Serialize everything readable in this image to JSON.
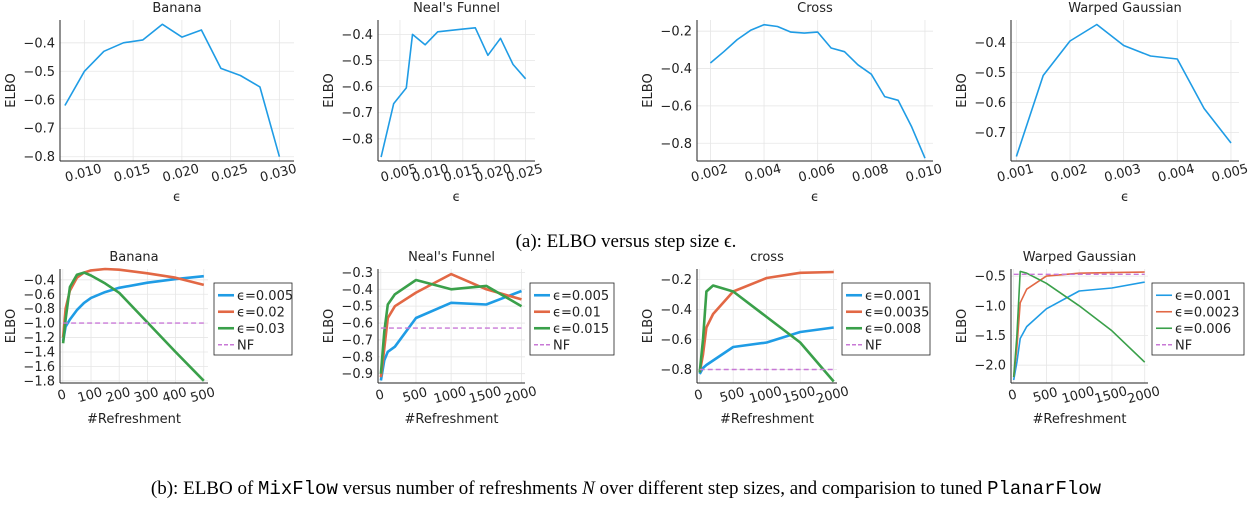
{
  "captions": {
    "a": "(a): ELBO versus step size ϵ.",
    "b_prefix": "(b): ELBO of ",
    "b_code1": "MixFlow",
    "b_mid1": " versus number of refreshments ",
    "b_var": "N",
    "b_mid2": " over different step sizes, and comparision to tuned ",
    "b_code2": "PlanarFlow"
  },
  "chart_data": [
    {
      "type": "line",
      "title": "Banana",
      "xlabel": "ϵ",
      "ylabel": "ELBO",
      "xlim": [
        0.0075,
        0.0315
      ],
      "ylim": [
        -0.815,
        -0.32
      ],
      "xticks": [
        0.01,
        0.015,
        0.02,
        0.025,
        0.03
      ],
      "xticklabels": [
        "0.010",
        "0.015",
        "0.020",
        "0.025",
        "0.030"
      ],
      "yticks": [
        -0.8,
        -0.7,
        -0.6,
        -0.5,
        -0.4
      ],
      "yticklabels": [
        "−0.8",
        "−0.7",
        "−0.6",
        "−0.5",
        "−0.4"
      ],
      "series": [
        {
          "color": "#1f9ce5",
          "x": [
            0.008,
            0.01,
            0.012,
            0.014,
            0.016,
            0.018,
            0.02,
            0.022,
            0.024,
            0.026,
            0.028,
            0.03
          ],
          "y": [
            -0.62,
            -0.5,
            -0.43,
            -0.4,
            -0.39,
            -0.335,
            -0.38,
            -0.355,
            -0.49,
            -0.515,
            -0.555,
            -0.8
          ]
        }
      ]
    },
    {
      "type": "line",
      "title": "Neal's Funnel",
      "xlabel": "ϵ",
      "ylabel": "ELBO",
      "xlim": [
        0.0015,
        0.0265
      ],
      "ylim": [
        -0.885,
        -0.345
      ],
      "xticks": [
        0.005,
        0.01,
        0.015,
        0.02,
        0.025
      ],
      "xticklabels": [
        "0.005",
        "0.010",
        "0.015",
        "0.020",
        "0.025"
      ],
      "yticks": [
        -0.8,
        -0.7,
        -0.6,
        -0.5,
        -0.4
      ],
      "yticklabels": [
        "−0.8",
        "−0.7",
        "−0.6",
        "−0.5",
        "−0.4"
      ],
      "series": [
        {
          "color": "#1f9ce5",
          "x": [
            0.002,
            0.004,
            0.006,
            0.007,
            0.009,
            0.011,
            0.013,
            0.015,
            0.017,
            0.019,
            0.021,
            0.023,
            0.025
          ],
          "y": [
            -0.87,
            -0.665,
            -0.605,
            -0.4,
            -0.44,
            -0.39,
            -0.385,
            -0.38,
            -0.375,
            -0.48,
            -0.415,
            -0.515,
            -0.57
          ]
        }
      ]
    },
    {
      "type": "line",
      "title": "Cross",
      "xlabel": "ϵ",
      "ylabel": "ELBO",
      "xlim": [
        0.0015,
        0.0103
      ],
      "ylim": [
        -0.895,
        -0.14
      ],
      "xticks": [
        0.002,
        0.004,
        0.006,
        0.008,
        0.01
      ],
      "xticklabels": [
        "0.002",
        "0.004",
        "0.006",
        "0.008",
        "0.010"
      ],
      "yticks": [
        -0.8,
        -0.6,
        -0.4,
        -0.2
      ],
      "yticklabels": [
        "−0.8",
        "−0.6",
        "−0.4",
        "−0.2"
      ],
      "series": [
        {
          "color": "#1f9ce5",
          "x": [
            0.002,
            0.0025,
            0.003,
            0.0035,
            0.004,
            0.0045,
            0.005,
            0.0055,
            0.006,
            0.0065,
            0.007,
            0.0075,
            0.008,
            0.0085,
            0.009,
            0.0095,
            0.01
          ],
          "y": [
            -0.37,
            -0.31,
            -0.245,
            -0.195,
            -0.165,
            -0.175,
            -0.205,
            -0.21,
            -0.205,
            -0.29,
            -0.31,
            -0.38,
            -0.43,
            -0.55,
            -0.57,
            -0.71,
            -0.88
          ]
        }
      ]
    },
    {
      "type": "line",
      "title": "Warped Gaussian",
      "xlabel": "ϵ",
      "ylabel": "ELBO",
      "xlim": [
        0.0009,
        0.00515
      ],
      "ylim": [
        -0.795,
        -0.325
      ],
      "xticks": [
        0.001,
        0.002,
        0.003,
        0.004,
        0.005
      ],
      "xticklabels": [
        "0.001",
        "0.002",
        "0.003",
        "0.004",
        "0.005"
      ],
      "yticks": [
        -0.7,
        -0.6,
        -0.5,
        -0.4
      ],
      "yticklabels": [
        "−0.7",
        "−0.6",
        "−0.5",
        "−0.4"
      ],
      "series": [
        {
          "color": "#1f9ce5",
          "x": [
            0.001,
            0.0015,
            0.002,
            0.0025,
            0.003,
            0.0035,
            0.004,
            0.0045,
            0.005
          ],
          "y": [
            -0.78,
            -0.51,
            -0.395,
            -0.34,
            -0.41,
            -0.445,
            -0.455,
            -0.62,
            -0.735
          ]
        }
      ]
    },
    {
      "type": "line",
      "title": "Banana",
      "xlabel": "#Refreshment",
      "ylabel": "ELBO",
      "xlim": [
        -10,
        515
      ],
      "ylim": [
        -1.83,
        -0.25
      ],
      "xticks": [
        0,
        100,
        200,
        300,
        400,
        500
      ],
      "xticklabels": [
        "0",
        "100",
        "200",
        "300",
        "400",
        "500"
      ],
      "yticks": [
        -1.8,
        -1.6,
        -1.4,
        -1.2,
        -1.0,
        -0.8,
        -0.6,
        -0.4
      ],
      "yticklabels": [
        "−1.8",
        "−1.6",
        "−1.4",
        "−1.2",
        "−1.0",
        "−0.8",
        "−0.6",
        "−0.4"
      ],
      "legend": "right",
      "series": [
        {
          "name": "ϵ=0.005",
          "color": "#1f9ce5",
          "width": 2.6,
          "x": [
            1,
            10,
            25,
            50,
            75,
            100,
            150,
            200,
            300,
            400,
            500
          ],
          "y": [
            -1.25,
            -1.05,
            -0.95,
            -0.82,
            -0.72,
            -0.65,
            -0.57,
            -0.51,
            -0.44,
            -0.39,
            -0.35
          ]
        },
        {
          "name": "ϵ=0.02",
          "color": "#e26845",
          "width": 2.6,
          "x": [
            1,
            10,
            25,
            50,
            75,
            100,
            150,
            200,
            300,
            400,
            500
          ],
          "y": [
            -1.2,
            -0.8,
            -0.55,
            -0.37,
            -0.3,
            -0.27,
            -0.25,
            -0.26,
            -0.31,
            -0.37,
            -0.47
          ]
        },
        {
          "name": "ϵ=0.03",
          "color": "#3aa04a",
          "width": 2.6,
          "x": [
            1,
            10,
            25,
            50,
            75,
            100,
            150,
            200,
            300,
            400,
            500
          ],
          "y": [
            -1.28,
            -0.95,
            -0.5,
            -0.33,
            -0.3,
            -0.34,
            -0.45,
            -0.58,
            -0.99,
            -1.4,
            -1.8
          ]
        },
        {
          "name": "NF",
          "color": "#c878d6",
          "width": 1.4,
          "dash": true,
          "x": [
            1,
            500
          ],
          "y": [
            -1.0,
            -1.0
          ]
        }
      ]
    },
    {
      "type": "line",
      "title": "Neal's Funnel",
      "xlabel": "#Refreshment",
      "ylabel": "ELBO",
      "xlim": [
        -40,
        2050
      ],
      "ylim": [
        -0.955,
        -0.28
      ],
      "xticks": [
        0,
        500,
        1000,
        1500,
        2000
      ],
      "xticklabels": [
        "0",
        "500",
        "1000",
        "1500",
        "2000"
      ],
      "yticks": [
        -0.9,
        -0.8,
        -0.7,
        -0.6,
        -0.5,
        -0.4,
        -0.3
      ],
      "yticklabels": [
        "−0.9",
        "−0.8",
        "−0.7",
        "−0.6",
        "−0.5",
        "−0.4",
        "−0.3"
      ],
      "legend": "right",
      "series": [
        {
          "name": "ϵ=0.005",
          "color": "#1f9ce5",
          "width": 2.6,
          "x": [
            1,
            50,
            100,
            200,
            500,
            1000,
            1500,
            2000
          ],
          "y": [
            -0.94,
            -0.82,
            -0.77,
            -0.74,
            -0.57,
            -0.48,
            -0.49,
            -0.41
          ]
        },
        {
          "name": "ϵ=0.01",
          "color": "#e26845",
          "width": 2.6,
          "x": [
            1,
            50,
            100,
            200,
            500,
            1000,
            1500,
            2000
          ],
          "y": [
            -0.92,
            -0.75,
            -0.57,
            -0.5,
            -0.42,
            -0.31,
            -0.4,
            -0.46
          ]
        },
        {
          "name": "ϵ=0.015",
          "color": "#3aa04a",
          "width": 2.6,
          "x": [
            1,
            50,
            100,
            200,
            500,
            1000,
            1500,
            2000
          ],
          "y": [
            -0.9,
            -0.65,
            -0.49,
            -0.43,
            -0.345,
            -0.4,
            -0.38,
            -0.5
          ]
        },
        {
          "name": "NF",
          "color": "#c878d6",
          "width": 1.4,
          "dash": true,
          "x": [
            1,
            2000
          ],
          "y": [
            -0.63,
            -0.63
          ]
        }
      ]
    },
    {
      "type": "line",
      "title": "cross",
      "xlabel": "#Refreshment",
      "ylabel": "ELBO",
      "xlim": [
        -40,
        2050
      ],
      "ylim": [
        -0.89,
        -0.13
      ],
      "xticks": [
        0,
        500,
        1000,
        1500,
        2000
      ],
      "xticklabels": [
        "0",
        "500",
        "1000",
        "1500",
        "2000"
      ],
      "yticks": [
        -0.8,
        -0.6,
        -0.4,
        -0.2
      ],
      "yticklabels": [
        "−0.8",
        "−0.6",
        "−0.4",
        "−0.2"
      ],
      "legend": "right",
      "series": [
        {
          "name": "ϵ=0.001",
          "color": "#1f9ce5",
          "width": 2.6,
          "x": [
            1,
            50,
            100,
            200,
            500,
            1000,
            1500,
            2000
          ],
          "y": [
            -0.83,
            -0.79,
            -0.77,
            -0.74,
            -0.65,
            -0.62,
            -0.55,
            -0.52
          ]
        },
        {
          "name": "ϵ=0.0035",
          "color": "#e26845",
          "width": 2.6,
          "x": [
            1,
            50,
            100,
            200,
            500,
            1000,
            1500,
            2000
          ],
          "y": [
            -0.82,
            -0.7,
            -0.52,
            -0.43,
            -0.28,
            -0.19,
            -0.155,
            -0.15
          ]
        },
        {
          "name": "ϵ=0.008",
          "color": "#3aa04a",
          "width": 2.6,
          "x": [
            1,
            50,
            100,
            200,
            500,
            1000,
            1500,
            2000
          ],
          "y": [
            -0.82,
            -0.6,
            -0.28,
            -0.24,
            -0.28,
            -0.45,
            -0.62,
            -0.88
          ]
        },
        {
          "name": "NF",
          "color": "#c878d6",
          "width": 1.4,
          "dash": true,
          "x": [
            1,
            2000
          ],
          "y": [
            -0.8,
            -0.8
          ]
        }
      ]
    },
    {
      "type": "line",
      "title": "Warped Gaussian",
      "xlabel": "#Refreshment",
      "ylabel": "ELBO",
      "xlim": [
        -40,
        2050
      ],
      "ylim": [
        -2.3,
        -0.38
      ],
      "xticks": [
        0,
        500,
        1000,
        1500,
        2000
      ],
      "xticklabels": [
        "0",
        "500",
        "1000",
        "1500",
        "2000"
      ],
      "yticks": [
        -2.0,
        -1.5,
        -1.0,
        -0.5
      ],
      "yticklabels": [
        "−2.0",
        "−1.5",
        "−1.0",
        "−0.5"
      ],
      "legend": "right",
      "series": [
        {
          "name": "ϵ=0.001",
          "color": "#1f9ce5",
          "width": 1.6,
          "x": [
            1,
            50,
            100,
            200,
            500,
            1000,
            1500,
            2000
          ],
          "y": [
            -2.25,
            -1.95,
            -1.55,
            -1.35,
            -1.05,
            -0.75,
            -0.7,
            -0.6
          ]
        },
        {
          "name": "ϵ=0.0023",
          "color": "#e26845",
          "width": 1.6,
          "x": [
            1,
            50,
            100,
            200,
            500,
            1000,
            1500,
            2000
          ],
          "y": [
            -2.2,
            -1.7,
            -0.95,
            -0.72,
            -0.5,
            -0.45,
            -0.44,
            -0.43
          ]
        },
        {
          "name": "ϵ=0.006",
          "color": "#3aa04a",
          "width": 1.6,
          "x": [
            1,
            50,
            100,
            200,
            500,
            1000,
            1500,
            2000
          ],
          "y": [
            -2.2,
            -1.5,
            -0.42,
            -0.45,
            -0.62,
            -1.0,
            -1.42,
            -1.95
          ]
        },
        {
          "name": "NF",
          "color": "#c878d6",
          "width": 1.4,
          "dash": true,
          "x": [
            1,
            2000
          ],
          "y": [
            -0.47,
            -0.47
          ]
        }
      ]
    }
  ]
}
